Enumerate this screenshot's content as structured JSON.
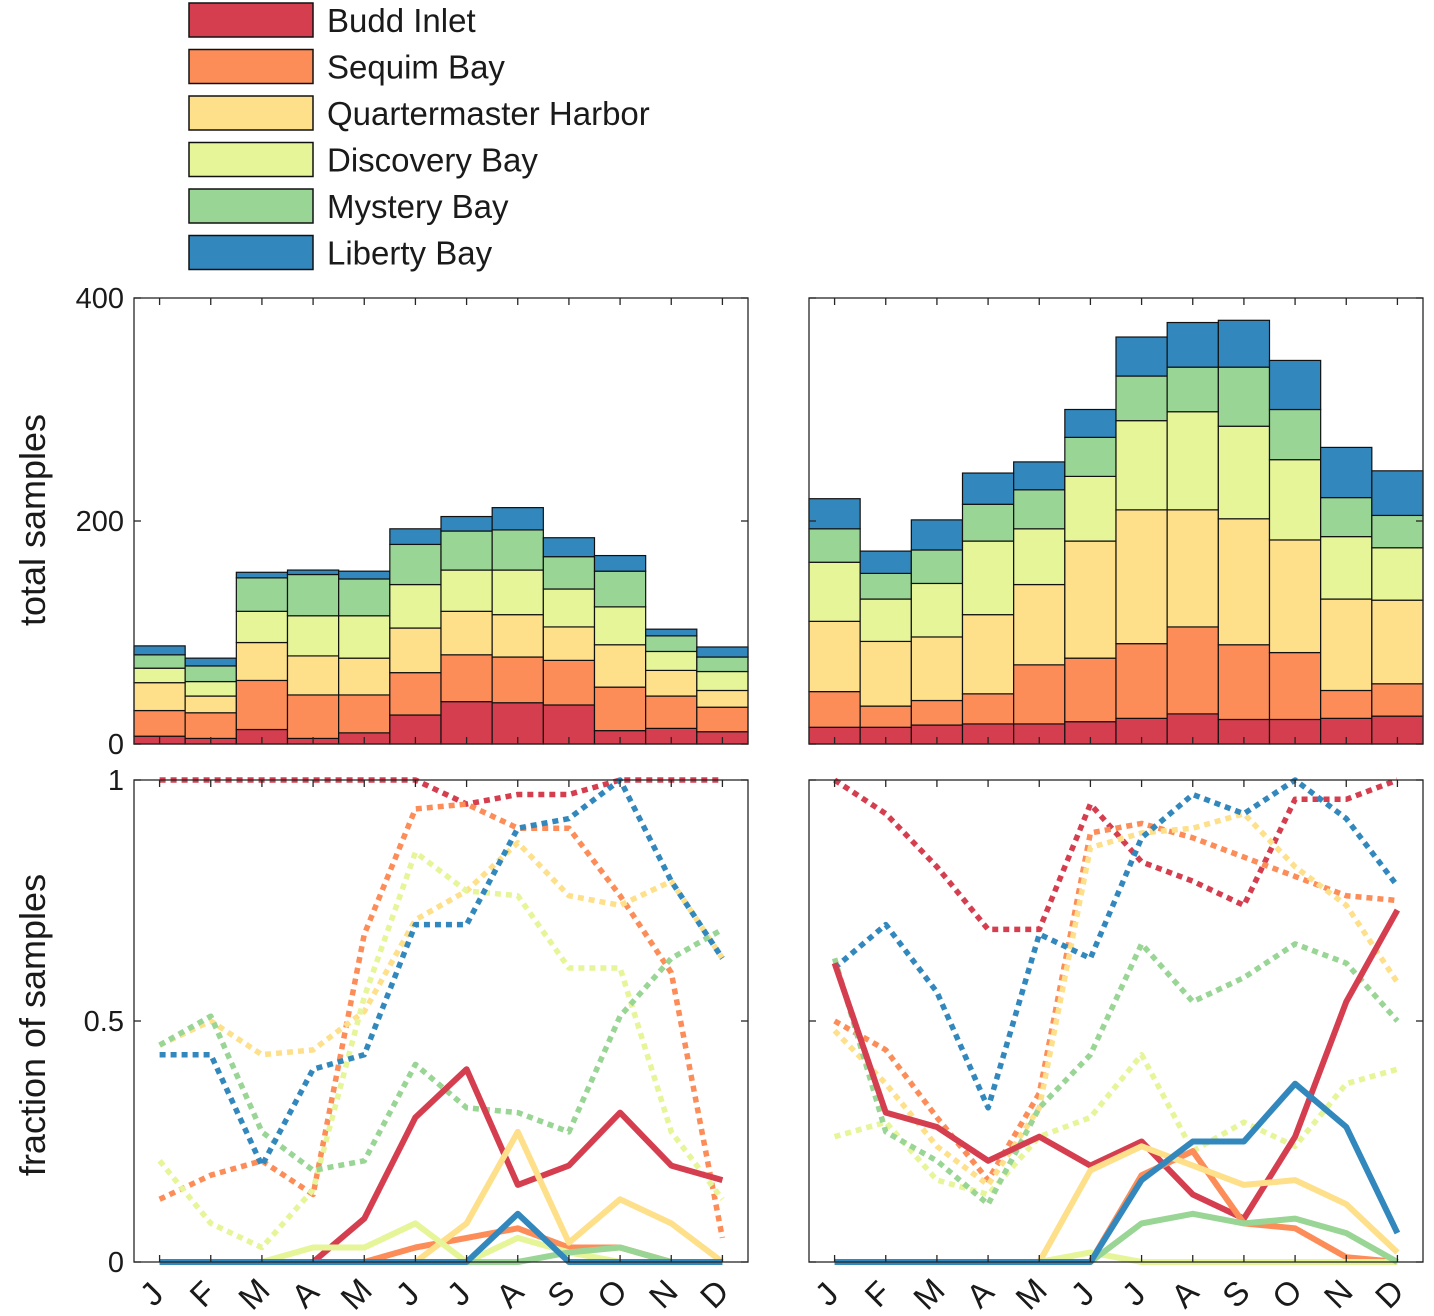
{
  "colors": {
    "Budd Inlet": "#d53e4f",
    "Sequim Bay": "#fc8d59",
    "Quartermaster Harbor": "#fee08b",
    "Discovery Bay": "#e6f598",
    "Mystery Bay": "#99d594",
    "Liberty Bay": "#3288bd"
  },
  "legend": [
    "Budd Inlet",
    "Sequim Bay",
    "Quartermaster Harbor",
    "Discovery Bay",
    "Mystery Bay",
    "Liberty Bay"
  ],
  "months": [
    "J",
    "F",
    "M",
    "A",
    "M",
    "J",
    "J",
    "A",
    "S",
    "O",
    "N",
    "D"
  ],
  "y_top_ticks": [
    "0",
    "200",
    "400"
  ],
  "y_bottom_ticks": [
    "0",
    "0.5",
    "1"
  ],
  "ylabel_top": "total samples",
  "ylabel_bottom": "fraction of samples",
  "chart_data": [
    {
      "panel": "top-left",
      "type": "bar",
      "stacked": true,
      "ylim": [
        0,
        400
      ],
      "categories": [
        "J",
        "F",
        "M",
        "A",
        "M",
        "J",
        "J",
        "A",
        "S",
        "O",
        "N",
        "D"
      ],
      "series": [
        {
          "name": "Budd Inlet",
          "values": [
            7,
            5,
            13,
            5,
            10,
            26,
            38,
            37,
            35,
            12,
            14,
            11
          ]
        },
        {
          "name": "Sequim Bay",
          "values": [
            23,
            23,
            44,
            39,
            34,
            38,
            42,
            41,
            40,
            39,
            29,
            22
          ]
        },
        {
          "name": "Quartermaster Harbor",
          "values": [
            25,
            15,
            34,
            35,
            33,
            40,
            39,
            38,
            30,
            38,
            23,
            15
          ]
        },
        {
          "name": "Discovery Bay",
          "values": [
            13,
            13,
            28,
            36,
            38,
            39,
            37,
            40,
            34,
            34,
            17,
            17
          ]
        },
        {
          "name": "Mystery Bay",
          "values": [
            12,
            14,
            30,
            37,
            33,
            36,
            35,
            36,
            29,
            32,
            14,
            13
          ]
        },
        {
          "name": "Liberty Bay",
          "values": [
            8,
            7,
            5,
            4,
            7,
            14,
            13,
            20,
            17,
            14,
            6,
            9
          ]
        }
      ]
    },
    {
      "panel": "top-right",
      "type": "bar",
      "stacked": true,
      "ylim": [
        0,
        400
      ],
      "categories": [
        "J",
        "F",
        "M",
        "A",
        "M",
        "J",
        "J",
        "A",
        "S",
        "O",
        "N",
        "D"
      ],
      "series": [
        {
          "name": "Budd Inlet",
          "values": [
            15,
            15,
            17,
            18,
            18,
            20,
            23,
            27,
            22,
            22,
            23,
            25
          ]
        },
        {
          "name": "Sequim Bay",
          "values": [
            32,
            19,
            22,
            27,
            53,
            57,
            67,
            78,
            67,
            60,
            25,
            29
          ]
        },
        {
          "name": "Quartermaster Harbor",
          "values": [
            63,
            58,
            57,
            71,
            72,
            105,
            120,
            105,
            113,
            101,
            82,
            75
          ]
        },
        {
          "name": "Discovery Bay",
          "values": [
            53,
            38,
            48,
            66,
            50,
            58,
            80,
            88,
            83,
            72,
            56,
            47
          ]
        },
        {
          "name": "Mystery Bay",
          "values": [
            30,
            23,
            30,
            33,
            35,
            35,
            40,
            40,
            53,
            45,
            35,
            29
          ]
        },
        {
          "name": "Liberty Bay",
          "values": [
            27,
            20,
            27,
            28,
            25,
            25,
            35,
            40,
            42,
            44,
            45,
            40
          ]
        }
      ]
    },
    {
      "panel": "bottom-left",
      "type": "line",
      "ylim": [
        0,
        1
      ],
      "x": [
        "J",
        "F",
        "M",
        "A",
        "M",
        "J",
        "J",
        "A",
        "S",
        "O",
        "N",
        "D"
      ],
      "series": [
        {
          "name": "Budd Inlet",
          "style": "solid",
          "values": [
            0,
            0,
            0,
            0,
            0.09,
            0.3,
            0.4,
            0.16,
            0.2,
            0.31,
            0.2,
            0.17
          ]
        },
        {
          "name": "Sequim Bay",
          "style": "solid",
          "values": [
            0,
            0,
            0,
            0,
            0,
            0.03,
            0.05,
            0.07,
            0.03,
            0.03,
            0,
            0
          ]
        },
        {
          "name": "Quartermaster Harbor",
          "style": "solid",
          "values": [
            0,
            0,
            0,
            0,
            0,
            0,
            0.08,
            0.27,
            0.04,
            0.13,
            0.08,
            0
          ]
        },
        {
          "name": "Discovery Bay",
          "style": "solid",
          "values": [
            0,
            0,
            0,
            0.03,
            0.03,
            0.08,
            0,
            0.05,
            0.02,
            0,
            0,
            0
          ]
        },
        {
          "name": "Mystery Bay",
          "style": "solid",
          "values": [
            0,
            0,
            0,
            0,
            0,
            0,
            0,
            0,
            0.02,
            0.03,
            0,
            0
          ]
        },
        {
          "name": "Liberty Bay",
          "style": "solid",
          "values": [
            0,
            0,
            0,
            0,
            0,
            0,
            0,
            0.1,
            0,
            0,
            0,
            0
          ]
        },
        {
          "name": "Budd Inlet",
          "style": "dotted",
          "values": [
            1,
            1,
            1,
            1,
            1,
            1,
            0.95,
            0.97,
            0.97,
            1,
            1,
            1
          ]
        },
        {
          "name": "Sequim Bay",
          "style": "dotted",
          "values": [
            0.13,
            0.18,
            0.21,
            0.14,
            0.68,
            0.94,
            0.95,
            0.9,
            0.9,
            0.76,
            0.6,
            0.05
          ]
        },
        {
          "name": "Quartermaster Harbor",
          "style": "dotted",
          "values": [
            0.45,
            0.5,
            0.43,
            0.44,
            0.52,
            0.71,
            0.77,
            0.87,
            0.76,
            0.74,
            0.79,
            0.63
          ]
        },
        {
          "name": "Discovery Bay",
          "style": "dotted",
          "values": [
            0.21,
            0.08,
            0.03,
            0.15,
            0.55,
            0.85,
            0.77,
            0.76,
            0.61,
            0.61,
            0.27,
            0.13
          ]
        },
        {
          "name": "Mystery Bay",
          "style": "dotted",
          "values": [
            0.45,
            0.51,
            0.27,
            0.19,
            0.21,
            0.41,
            0.32,
            0.31,
            0.27,
            0.51,
            0.63,
            0.69
          ]
        },
        {
          "name": "Liberty Bay",
          "style": "dotted",
          "values": [
            0.43,
            0.43,
            0.2,
            0.4,
            0.43,
            0.7,
            0.7,
            0.9,
            0.92,
            1.0,
            0.79,
            0.63
          ]
        }
      ]
    },
    {
      "panel": "bottom-right",
      "type": "line",
      "ylim": [
        0,
        1
      ],
      "x": [
        "J",
        "F",
        "M",
        "A",
        "M",
        "J",
        "J",
        "A",
        "S",
        "O",
        "N",
        "D"
      ],
      "series": [
        {
          "name": "Budd Inlet",
          "style": "solid",
          "values": [
            0.62,
            0.31,
            0.28,
            0.21,
            0.26,
            0.2,
            0.25,
            0.14,
            0.09,
            0.26,
            0.54,
            0.73
          ]
        },
        {
          "name": "Sequim Bay",
          "style": "solid",
          "values": [
            0,
            0,
            0,
            0,
            0,
            0,
            0.18,
            0.23,
            0.08,
            0.07,
            0.01,
            0
          ]
        },
        {
          "name": "Quartermaster Harbor",
          "style": "solid",
          "values": [
            0,
            0,
            0,
            0,
            0,
            0.19,
            0.24,
            0.2,
            0.16,
            0.17,
            0.12,
            0.02
          ]
        },
        {
          "name": "Discovery Bay",
          "style": "solid",
          "values": [
            0,
            0,
            0,
            0,
            0,
            0.02,
            0,
            0,
            0,
            0,
            0,
            0
          ]
        },
        {
          "name": "Mystery Bay",
          "style": "solid",
          "values": [
            0,
            0,
            0,
            0,
            0,
            0,
            0.08,
            0.1,
            0.08,
            0.09,
            0.06,
            0
          ]
        },
        {
          "name": "Liberty Bay",
          "style": "solid",
          "values": [
            0,
            0,
            0,
            0,
            0,
            0,
            0.17,
            0.25,
            0.25,
            0.37,
            0.28,
            0.06
          ]
        },
        {
          "name": "Budd Inlet",
          "style": "dotted",
          "values": [
            1,
            0.93,
            0.82,
            0.69,
            0.69,
            0.95,
            0.83,
            0.79,
            0.74,
            0.96,
            0.96,
            1
          ]
        },
        {
          "name": "Sequim Bay",
          "style": "dotted",
          "values": [
            0.5,
            0.44,
            0.3,
            0.17,
            0.35,
            0.89,
            0.91,
            0.88,
            0.84,
            0.8,
            0.76,
            0.75
          ]
        },
        {
          "name": "Quartermaster Harbor",
          "style": "dotted",
          "values": [
            0.48,
            0.37,
            0.24,
            0.16,
            0.32,
            0.86,
            0.89,
            0.9,
            0.93,
            0.82,
            0.74,
            0.58
          ]
        },
        {
          "name": "Discovery Bay",
          "style": "dotted",
          "values": [
            0.26,
            0.29,
            0.17,
            0.14,
            0.26,
            0.3,
            0.43,
            0.23,
            0.29,
            0.24,
            0.37,
            0.4
          ]
        },
        {
          "name": "Mystery Bay",
          "style": "dotted",
          "values": [
            0.63,
            0.27,
            0.21,
            0.12,
            0.32,
            0.43,
            0.66,
            0.54,
            0.59,
            0.66,
            0.62,
            0.5
          ]
        },
        {
          "name": "Liberty Bay",
          "style": "dotted",
          "values": [
            0.61,
            0.7,
            0.56,
            0.32,
            0.68,
            0.63,
            0.88,
            0.97,
            0.93,
            1.0,
            0.92,
            0.78
          ]
        }
      ]
    }
  ]
}
